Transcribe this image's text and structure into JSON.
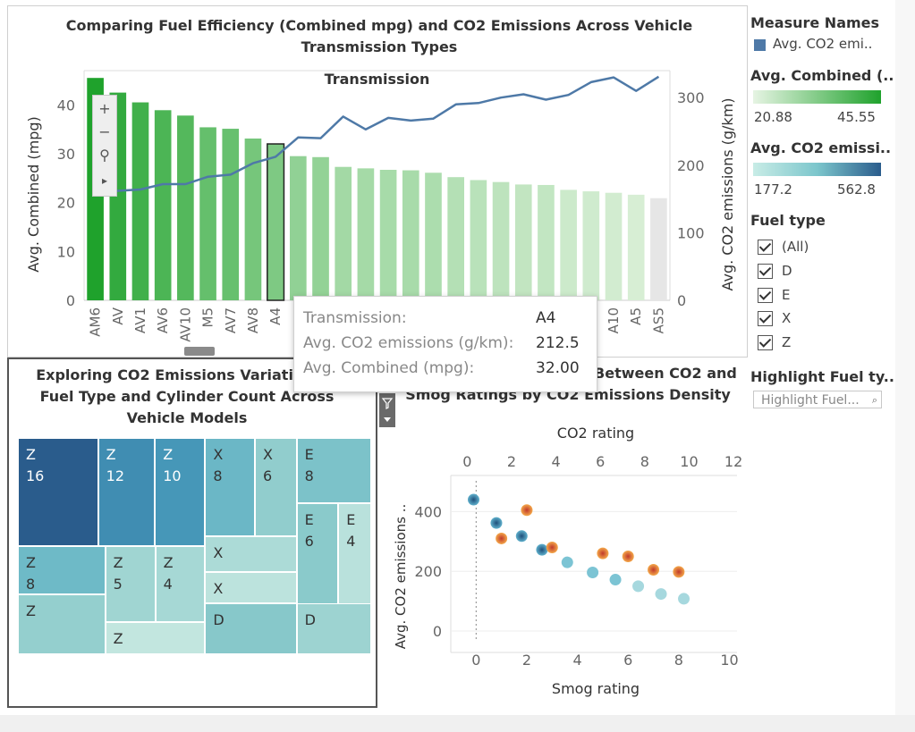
{
  "colors": {
    "line": "#4e79a7",
    "bar_max": "#1fa22c",
    "bar_min": "#e0f2dd",
    "bar_light": "#e6e6e6",
    "co2_low": "#a8dcd6",
    "co2_high": "#2a5c8c",
    "orange": "#e8692a",
    "blue_dot": "#3a8fb8"
  },
  "bar_panel": {
    "title": "Comparing Fuel Efficiency (Combined mpg) and CO2 Emissions Across Vehicle Transmission Types"
  },
  "treemap_panel": {
    "title": "Exploring CO2 Emissions Variation by Fuel Type and Cylinder Count Across Vehicle Models"
  },
  "scatter_panel": {
    "title": "Examining Relationship Between CO2 and Smog Ratings by CO2 Emissions Density"
  },
  "legend": {
    "measure_names_title": "Measure Names",
    "measure_names_item": "Avg. CO2 emi..",
    "combined_title": "Avg. Combined (..",
    "combined_min": "20.88",
    "combined_max": "45.55",
    "co2_title": "Avg. CO2 emissi..",
    "co2_min": "177.2",
    "co2_max": "562.8",
    "fuel_title": "Fuel type",
    "fuel_items": [
      "(All)",
      "D",
      "E",
      "X",
      "Z"
    ],
    "highlight_title": "Highlight Fuel ty..",
    "highlight_placeholder": "Highlight Fuel..."
  },
  "tooltip": {
    "rows": [
      {
        "label": "Transmission:",
        "value": "A4"
      },
      {
        "label": "Avg. CO2 emissions (g/km):",
        "value": "212.5"
      },
      {
        "label": "Avg. Combined (mpg):",
        "value": "32.00"
      }
    ]
  },
  "toolbar": {
    "zoom_in": "+",
    "zoom_out": "−",
    "pin": "⚲",
    "expand": "▸"
  },
  "chart_data": [
    {
      "type": "bar",
      "title": "",
      "xlabel": "Transmission",
      "ylabel": "Avg. Combined (mpg)",
      "y2label": "Avg. CO2 emissions (g/km)",
      "categories": [
        "AM6",
        "AV",
        "AV1",
        "AV6",
        "AV10",
        "M5",
        "AV7",
        "AV8",
        "A4",
        "",
        "",
        "",
        "",
        "",
        "",
        "",
        "",
        "",
        "",
        "",
        "",
        "",
        "",
        "A10",
        "A5",
        "AS5"
      ],
      "series": [
        {
          "name": "Avg. Combined (mpg)",
          "axis": "left",
          "values": [
            45.5,
            42.5,
            40.5,
            38.9,
            37.8,
            35.4,
            35.1,
            33.1,
            32.0,
            29.5,
            29.3,
            27.3,
            27.0,
            26.7,
            26.6,
            26.1,
            25.2,
            24.6,
            24.2,
            23.7,
            23.6,
            22.6,
            22.3,
            22.0,
            21.6,
            20.9
          ]
        },
        {
          "name": "Avg. CO2 emissions (g/km)",
          "axis": "right",
          "values": [
            158,
            162,
            164,
            172,
            172,
            183,
            186,
            203,
            212.5,
            241,
            240,
            272,
            253,
            270,
            266,
            269,
            290,
            292,
            300,
            305,
            297,
            304,
            323,
            330,
            310,
            331
          ]
        }
      ],
      "yticks_left": [
        0,
        10,
        20,
        30,
        40
      ],
      "ylim_left": [
        0,
        47
      ],
      "yticks_right": [
        0,
        100,
        200,
        300
      ],
      "ylim_right": [
        0,
        340
      ],
      "highlighted_category": "A4"
    },
    {
      "type": "heatmap",
      "subtype": "treemap",
      "title": "",
      "cells": [
        {
          "fuel": "Z",
          "cyl": "16",
          "co2": 545
        },
        {
          "fuel": "Z",
          "cyl": "12",
          "co2": 410
        },
        {
          "fuel": "Z",
          "cyl": "10",
          "co2": 395
        },
        {
          "fuel": "X",
          "cyl": "8",
          "co2": 330
        },
        {
          "fuel": "X",
          "cyl": "6",
          "co2": 275
        },
        {
          "fuel": "E",
          "cyl": "8",
          "co2": 305
        },
        {
          "fuel": "E",
          "cyl": "6",
          "co2": 285
        },
        {
          "fuel": "E",
          "cyl": "4",
          "co2": 210
        },
        {
          "fuel": "X",
          "cyl": "",
          "co2": 230
        },
        {
          "fuel": "X",
          "cyl": "",
          "co2": 205
        },
        {
          "fuel": "Z",
          "cyl": "8",
          "co2": 325
        },
        {
          "fuel": "Z",
          "cyl": "5",
          "co2": 250
        },
        {
          "fuel": "Z",
          "cyl": "4",
          "co2": 240
        },
        {
          "fuel": "Z",
          "cyl": "",
          "co2": 270
        },
        {
          "fuel": "Z",
          "cyl": "",
          "co2": 195
        },
        {
          "fuel": "D",
          "cyl": "",
          "co2": 290
        },
        {
          "fuel": "D",
          "cyl": "",
          "co2": 255
        }
      ]
    },
    {
      "type": "scatter",
      "title": "",
      "xlabel": "Smog rating",
      "x2label": "CO2 rating",
      "ylabel": "Avg. CO2 emissions ..",
      "xticks": [
        0,
        2,
        4,
        6,
        8,
        10
      ],
      "x2ticks": [
        0,
        2,
        4,
        6,
        8,
        10,
        12
      ],
      "yticks": [
        0,
        200,
        400
      ],
      "xlim": [
        -1,
        10.3
      ],
      "ylim": [
        -30,
        515
      ],
      "series": [
        {
          "name": "",
          "color_key": "blue_dot",
          "points": [
            [
              -0.1,
              440
            ],
            [
              0.8,
              362
            ],
            [
              1.8,
              318
            ],
            [
              2.6,
              272
            ],
            [
              3.6,
              230
            ],
            [
              4.6,
              196
            ],
            [
              5.5,
              172
            ],
            [
              6.4,
              150
            ],
            [
              7.3,
              124
            ],
            [
              8.2,
              108
            ]
          ]
        },
        {
          "name": "",
          "color_key": "orange",
          "points": [
            [
              1.0,
              310
            ],
            [
              2.0,
              405
            ],
            [
              3.0,
              280
            ],
            [
              5.0,
              260
            ],
            [
              6.0,
              250
            ],
            [
              7.0,
              205
            ],
            [
              8.0,
              198
            ]
          ]
        }
      ]
    }
  ]
}
